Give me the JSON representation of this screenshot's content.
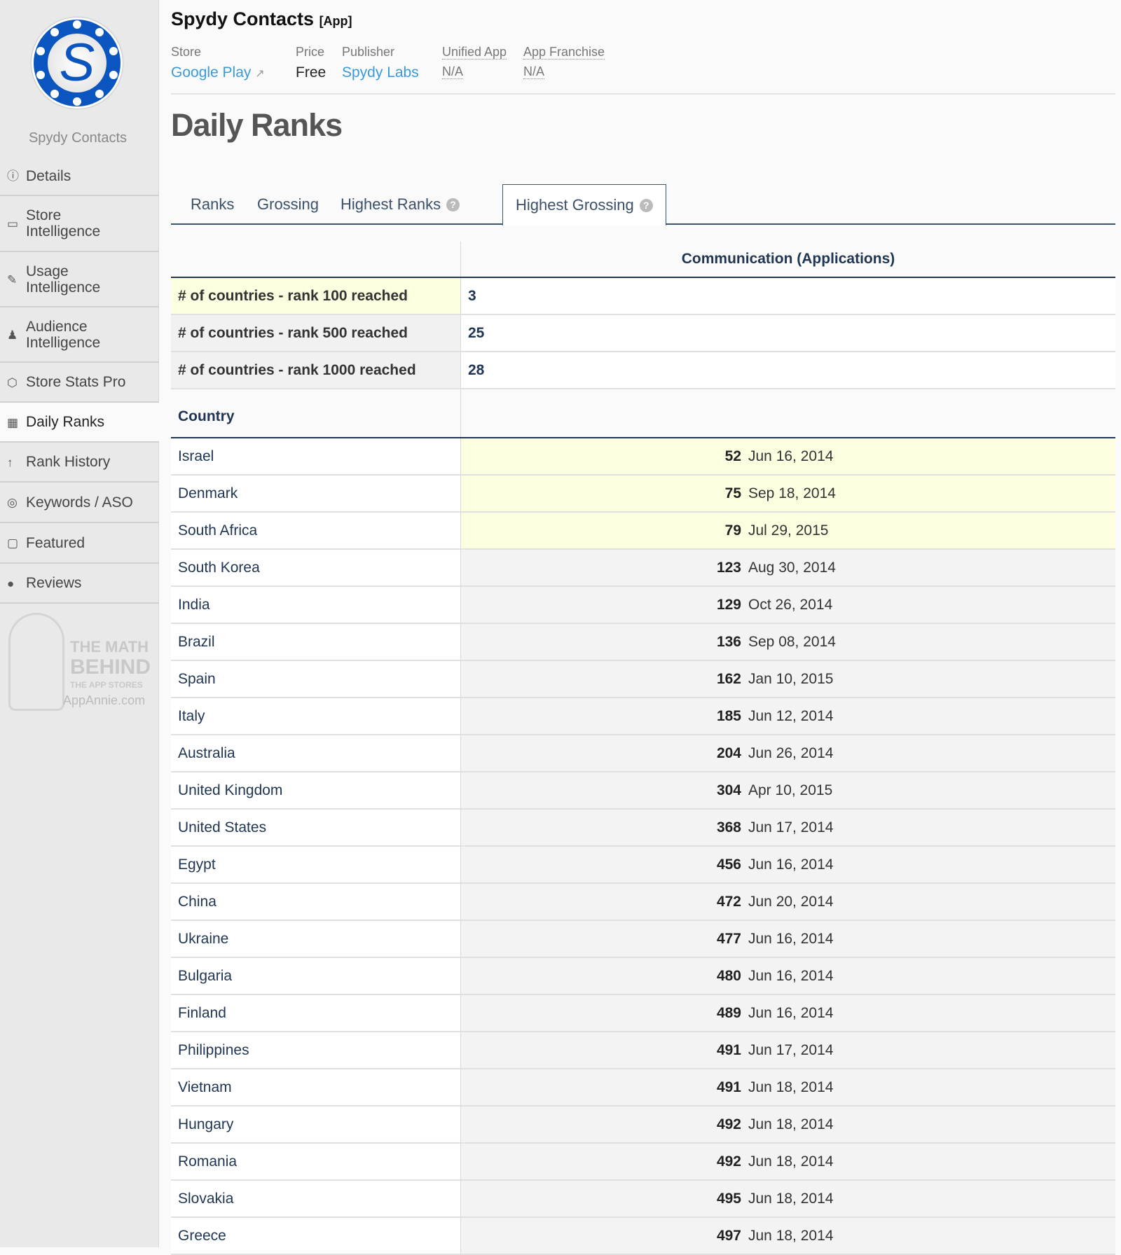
{
  "app": {
    "name": "Spydy Contacts",
    "type_tag": "[App]",
    "accent": "#0a55c0"
  },
  "meta": {
    "store_label": "Store",
    "store_value": "Google Play",
    "price_label": "Price",
    "price_value": "Free",
    "publisher_label": "Publisher",
    "publisher_value": "Spydy Labs",
    "unified_label": "Unified App",
    "unified_value": "N/A",
    "franchise_label": "App Franchise",
    "franchise_value": "N/A"
  },
  "sidebar": {
    "app_name": "Spydy Contacts",
    "items": [
      {
        "label": "Details",
        "icon": "info-icon"
      },
      {
        "label": "Store Intelligence",
        "icon": "store-icon"
      },
      {
        "label": "Usage Intelligence",
        "icon": "usage-icon"
      },
      {
        "label": "Audience Intelligence",
        "icon": "person-icon"
      },
      {
        "label": "Store Stats Pro",
        "icon": "cube-icon"
      },
      {
        "label": "Daily Ranks",
        "icon": "calendar-icon",
        "active": true
      },
      {
        "label": "Rank History",
        "icon": "arrow-up-icon"
      },
      {
        "label": "Keywords / ASO",
        "icon": "target-icon"
      },
      {
        "label": "Featured",
        "icon": "bookmark-icon"
      },
      {
        "label": "Reviews",
        "icon": "comments-icon"
      }
    ],
    "promo": {
      "line1": "THE MATH",
      "line2": "BEHIND",
      "line3": "THE APP STORES",
      "line4": "AppAnnie.com"
    }
  },
  "page_title": "Daily Ranks",
  "tabs": [
    {
      "label": "Ranks"
    },
    {
      "label": "Grossing"
    },
    {
      "label": "Highest Ranks",
      "help": true
    },
    {
      "label": "Highest Grossing",
      "help": true,
      "active": true
    }
  ],
  "table": {
    "column_header": "Communication (Applications)",
    "summary": [
      {
        "label": "# of countries - rank 100 reached",
        "value": "3"
      },
      {
        "label": "# of countries - rank 500 reached",
        "value": "25"
      },
      {
        "label": "# of countries - rank 1000 reached",
        "value": "28"
      }
    ],
    "country_header": "Country",
    "rows": [
      {
        "country": "Israel",
        "rank": "52",
        "date": "Jun 16, 2014"
      },
      {
        "country": "Denmark",
        "rank": "75",
        "date": "Sep 18, 2014"
      },
      {
        "country": "South Africa",
        "rank": "79",
        "date": "Jul 29, 2015"
      },
      {
        "country": "South Korea",
        "rank": "123",
        "date": "Aug 30, 2014"
      },
      {
        "country": "India",
        "rank": "129",
        "date": "Oct 26, 2014"
      },
      {
        "country": "Brazil",
        "rank": "136",
        "date": "Sep 08, 2014"
      },
      {
        "country": "Spain",
        "rank": "162",
        "date": "Jan 10, 2015"
      },
      {
        "country": "Italy",
        "rank": "185",
        "date": "Jun 12, 2014"
      },
      {
        "country": "Australia",
        "rank": "204",
        "date": "Jun 26, 2014"
      },
      {
        "country": "United Kingdom",
        "rank": "304",
        "date": "Apr 10, 2015"
      },
      {
        "country": "United States",
        "rank": "368",
        "date": "Jun 17, 2014"
      },
      {
        "country": "Egypt",
        "rank": "456",
        "date": "Jun 16, 2014"
      },
      {
        "country": "China",
        "rank": "472",
        "date": "Jun 20, 2014"
      },
      {
        "country": "Ukraine",
        "rank": "477",
        "date": "Jun 16, 2014"
      },
      {
        "country": "Bulgaria",
        "rank": "480",
        "date": "Jun 16, 2014"
      },
      {
        "country": "Finland",
        "rank": "489",
        "date": "Jun 16, 2014"
      },
      {
        "country": "Philippines",
        "rank": "491",
        "date": "Jun 17, 2014"
      },
      {
        "country": "Vietnam",
        "rank": "491",
        "date": "Jun 18, 2014"
      },
      {
        "country": "Hungary",
        "rank": "492",
        "date": "Jun 18, 2014"
      },
      {
        "country": "Romania",
        "rank": "492",
        "date": "Jun 18, 2014"
      },
      {
        "country": "Slovakia",
        "rank": "495",
        "date": "Jun 18, 2014"
      },
      {
        "country": "Greece",
        "rank": "497",
        "date": "Jun 18, 2014"
      }
    ]
  }
}
